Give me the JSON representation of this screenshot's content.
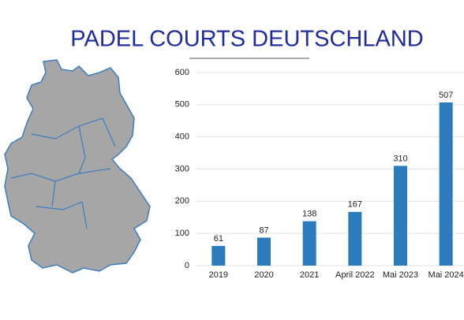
{
  "chart_data": {
    "type": "bar",
    "title": "PADEL COURTS DEUTSCHLAND",
    "categories": [
      "2019",
      "2020",
      "2021",
      "April 2022",
      "Mai 2023",
      "Mai 2024"
    ],
    "values": [
      61,
      87,
      138,
      167,
      310,
      507
    ],
    "color": "#2b7bbd",
    "ylim": [
      0,
      600
    ],
    "yticks": [
      0,
      100,
      200,
      300,
      400,
      500,
      600
    ],
    "grid": true
  }
}
